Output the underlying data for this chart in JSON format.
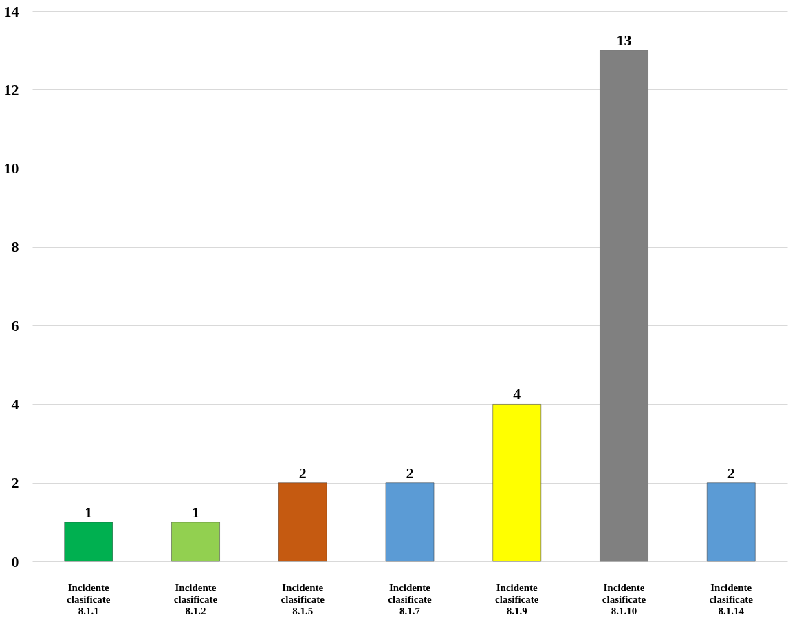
{
  "chart_data": {
    "type": "bar",
    "categories": [
      "Incidente clasificate 8.1.1",
      "Incidente clasificate 8.1.2",
      "Incidente clasificate 8.1.5",
      "Incidente clasificate 8.1.7",
      "Incidente clasificate 8.1.9",
      "Incidente clasificate 8.1.10",
      "Incidente clasificate 8.1.14"
    ],
    "values": [
      1,
      1,
      2,
      2,
      4,
      13,
      2
    ],
    "colors": [
      "#00b050",
      "#92d050",
      "#c55a11",
      "#5b9bd5",
      "#ffff00",
      "#808080",
      "#5b9bd5"
    ],
    "ylim": [
      0,
      14
    ],
    "yticks": [
      0,
      2,
      4,
      6,
      8,
      10,
      12,
      14
    ],
    "grid": "y",
    "data_labels": true
  }
}
